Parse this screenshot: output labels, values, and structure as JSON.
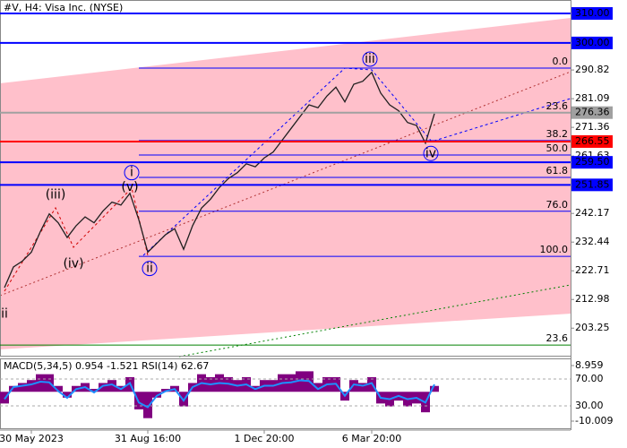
{
  "chart_data": {
    "type": "line",
    "title": "#V, H4:  Visa Inc. (NYSE)",
    "categories": [
      null,
      null,
      null,
      "30 May 2023",
      null,
      null,
      null,
      null,
      null,
      null,
      null,
      null,
      null,
      null,
      null,
      null,
      "31 Aug 16:00",
      null,
      null,
      null,
      null,
      null,
      null,
      null,
      null,
      null,
      null,
      null,
      null,
      "1 Dec 20:00",
      null,
      null,
      null,
      null,
      null,
      null,
      null,
      null,
      null,
      null,
      null,
      "6 Mar 20:00",
      null,
      null,
      null,
      null,
      null,
      null,
      null
    ],
    "series": [
      {
        "color": "#1f1f1f",
        "values": [
          217,
          224,
          226,
          229,
          236,
          242,
          239,
          234,
          238,
          241,
          239,
          243,
          246,
          245,
          249,
          240,
          229,
          232,
          235,
          237,
          230,
          238,
          244,
          247,
          251,
          254,
          256,
          259,
          258,
          261,
          263,
          267,
          271,
          275,
          279,
          278,
          282,
          285,
          280,
          286,
          287,
          290,
          283,
          279,
          277,
          273,
          272,
          266,
          276
        ]
      }
    ],
    "ylim": [
      193.6,
      314.56
    ],
    "yticks": [
      290.82,
      281.09,
      271.36,
      261.63,
      242.17,
      232.44,
      222.71,
      212.98,
      203.25
    ],
    "levels": [
      {
        "value": 310,
        "label": "310.00",
        "color": "#0000ff"
      },
      {
        "value": 300,
        "label": "300.00",
        "color": "#0000ff"
      },
      {
        "value": 276.36,
        "label": "276.36",
        "color": "#a0a0a0"
      },
      {
        "value": 266.55,
        "label": "266.55",
        "color": "#ff0000"
      },
      {
        "value": 259.5,
        "label": "259.50",
        "color": "#0000ff"
      },
      {
        "value": 251.85,
        "label": "251.85",
        "color": "#0000ff"
      }
    ],
    "fibo": [
      {
        "value": 291.46,
        "label": "0.0",
        "color": "#0000ff"
      },
      {
        "value": 276.3,
        "label": "23.6",
        "color": "#0000ff"
      },
      {
        "value": 266.9,
        "label": "38.2",
        "color": "#0000ff"
      },
      {
        "value": 262.0,
        "label": "50.0",
        "color": "#0000ff"
      },
      {
        "value": 254.4,
        "label": "61.8",
        "color": "#0000ff"
      },
      {
        "value": 242.9,
        "label": "76.0",
        "color": "#0000ff"
      },
      {
        "value": 227.6,
        "label": "100.0",
        "color": "#0000ff"
      },
      {
        "value": 197.5,
        "label": "23.6",
        "color": "#008000"
      }
    ],
    "waves": [
      {
        "label": "ii",
        "x": 0,
        "price": 208,
        "color": "#d00000",
        "circle": false
      },
      {
        "label": "(iii)",
        "x": 5.7,
        "price": 248.5,
        "color": "#d00000",
        "circle": false
      },
      {
        "label": "(iv)",
        "x": 7.7,
        "price": 225,
        "color": "#d00000",
        "circle": false
      },
      {
        "label": "(v)",
        "x": 14,
        "price": 251,
        "color": "#d00000",
        "circle": false
      },
      {
        "label": "i",
        "x": 14.2,
        "price": 256,
        "color": "#0000ff",
        "circle": true
      },
      {
        "label": "ii",
        "x": 16.2,
        "price": 223.5,
        "color": "#0000ff",
        "circle": true
      },
      {
        "label": "iii",
        "x": 40.8,
        "price": 294.5,
        "color": "#0000ff",
        "circle": true
      },
      {
        "label": "iv",
        "x": 47.6,
        "price": 262.5,
        "color": "#0000ff",
        "circle": true
      }
    ],
    "indicator": {
      "label": "MACD(5,34,5) 0.954 -1.521 RSI(14) 62.67",
      "macd": {
        "color": "#800080",
        "ylim": [
          -12.46,
          11.4
        ],
        "yticks": [
          8.959,
          -10.009
        ],
        "values": [
          -4,
          2,
          3,
          4,
          6,
          6,
          2,
          -2,
          2,
          3,
          1,
          3,
          4,
          2,
          5,
          -6,
          -9,
          -2,
          1,
          2,
          -5,
          3,
          6,
          5,
          6,
          5,
          4,
          5,
          2,
          4,
          4,
          6,
          6,
          7,
          7,
          3,
          5,
          5,
          -3,
          4,
          3,
          5,
          -4,
          -5,
          -3,
          -5,
          -4,
          -7,
          2
        ]
      },
      "rsi": {
        "color": "#1e90ff",
        "ylim": [
          -3.3,
          100.7
        ],
        "yticks": [
          {
            "value": 70,
            "label": "70.00"
          },
          {
            "value": 30,
            "label": "30.00"
          }
        ],
        "values": [
          40,
          58,
          60,
          62,
          66,
          65,
          52,
          42,
          55,
          58,
          50,
          60,
          62,
          55,
          64,
          35,
          28,
          45,
          52,
          55,
          38,
          58,
          64,
          62,
          64,
          63,
          60,
          62,
          55,
          60,
          60,
          64,
          65,
          68,
          67,
          55,
          62,
          63,
          45,
          62,
          60,
          64,
          42,
          40,
          45,
          40,
          42,
          35,
          62
        ]
      }
    }
  }
}
